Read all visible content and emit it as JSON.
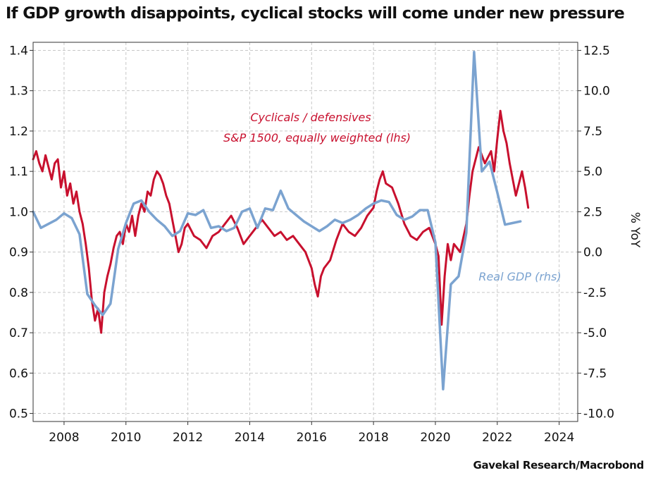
{
  "title": "If GDP growth disappoints, cyclical stocks will come under new pressure",
  "source": "Gavekal Research/Macrobond",
  "colors": {
    "cyclicals": "#c8102e",
    "gdp": "#7ba3d0",
    "grid": "#c8c8c8"
  },
  "chart_data": {
    "type": "line",
    "grid": true,
    "x_axis": {
      "min": 2007.0,
      "max": 2024.6,
      "ticks": [
        2008,
        2010,
        2012,
        2014,
        2016,
        2018,
        2020,
        2022,
        2024
      ]
    },
    "y_left": {
      "min": 0.48,
      "max": 1.42,
      "ticks": [
        0.5,
        0.6,
        0.7,
        0.8,
        0.9,
        1.0,
        1.1,
        1.2,
        1.3,
        1.4
      ],
      "tick_labels": [
        "0.5",
        "0.6",
        "0.7",
        "0.8",
        "0.9",
        "1.0",
        "1.1",
        "1.2",
        "1.3",
        "1.4"
      ]
    },
    "y_right": {
      "min": -10.5,
      "max": 13.0,
      "ticks": [
        -10.0,
        -7.5,
        -5.0,
        -2.5,
        0.0,
        2.5,
        5.0,
        7.5,
        10.0,
        12.5
      ],
      "tick_labels": [
        "-10.0",
        "-7.5",
        "-5.0",
        "-2.5",
        "0.0",
        "2.5",
        "5.0",
        "7.5",
        "10.0",
        "12.5"
      ],
      "label": "% YoY"
    },
    "series": [
      {
        "name": "Cyclicals / defensives S&P 1500, equally weighted (lhs)",
        "label_lines": [
          "Cyclicals / defensives",
          "S&P 1500, equally weighted (lhs)"
        ],
        "axis": "left",
        "x": [
          2007.0,
          2007.1,
          2007.2,
          2007.3,
          2007.4,
          2007.5,
          2007.6,
          2007.7,
          2007.8,
          2007.9,
          2008.0,
          2008.1,
          2008.2,
          2008.3,
          2008.4,
          2008.5,
          2008.6,
          2008.7,
          2008.8,
          2008.9,
          2009.0,
          2009.1,
          2009.2,
          2009.3,
          2009.4,
          2009.5,
          2009.6,
          2009.7,
          2009.8,
          2009.9,
          2010.0,
          2010.1,
          2010.2,
          2010.3,
          2010.4,
          2010.5,
          2010.6,
          2010.7,
          2010.8,
          2010.9,
          2011.0,
          2011.1,
          2011.2,
          2011.3,
          2011.4,
          2011.5,
          2011.6,
          2011.7,
          2011.8,
          2011.9,
          2012.0,
          2012.2,
          2012.4,
          2012.6,
          2012.8,
          2013.0,
          2013.2,
          2013.4,
          2013.6,
          2013.8,
          2014.0,
          2014.2,
          2014.4,
          2014.6,
          2014.8,
          2015.0,
          2015.2,
          2015.4,
          2015.6,
          2015.8,
          2016.0,
          2016.1,
          2016.2,
          2016.3,
          2016.4,
          2016.6,
          2016.8,
          2017.0,
          2017.2,
          2017.4,
          2017.6,
          2017.8,
          2018.0,
          2018.1,
          2018.2,
          2018.3,
          2018.4,
          2018.6,
          2018.8,
          2019.0,
          2019.2,
          2019.4,
          2019.6,
          2019.8,
          2020.0,
          2020.1,
          2020.2,
          2020.3,
          2020.4,
          2020.5,
          2020.6,
          2020.8,
          2021.0,
          2021.1,
          2021.2,
          2021.4,
          2021.6,
          2021.8,
          2021.9,
          2022.0,
          2022.1,
          2022.2,
          2022.3,
          2022.4,
          2022.5,
          2022.6,
          2022.7,
          2022.8,
          2022.9,
          2023.0
        ],
        "y": [
          1.13,
          1.15,
          1.12,
          1.1,
          1.14,
          1.11,
          1.08,
          1.12,
          1.13,
          1.06,
          1.1,
          1.04,
          1.07,
          1.02,
          1.05,
          1.0,
          0.97,
          0.92,
          0.86,
          0.78,
          0.73,
          0.76,
          0.7,
          0.8,
          0.84,
          0.87,
          0.91,
          0.94,
          0.95,
          0.92,
          0.97,
          0.95,
          0.99,
          0.94,
          0.99,
          1.02,
          1.0,
          1.05,
          1.04,
          1.08,
          1.1,
          1.09,
          1.07,
          1.04,
          1.02,
          0.98,
          0.94,
          0.9,
          0.92,
          0.96,
          0.97,
          0.94,
          0.93,
          0.91,
          0.94,
          0.95,
          0.97,
          0.99,
          0.96,
          0.92,
          0.94,
          0.96,
          0.98,
          0.96,
          0.94,
          0.95,
          0.93,
          0.94,
          0.92,
          0.9,
          0.86,
          0.82,
          0.79,
          0.84,
          0.86,
          0.88,
          0.93,
          0.97,
          0.95,
          0.94,
          0.96,
          0.99,
          1.01,
          1.05,
          1.08,
          1.1,
          1.07,
          1.06,
          1.02,
          0.97,
          0.94,
          0.93,
          0.95,
          0.96,
          0.92,
          0.89,
          0.72,
          0.84,
          0.92,
          0.88,
          0.92,
          0.9,
          0.97,
          1.04,
          1.1,
          1.16,
          1.12,
          1.15,
          1.1,
          1.18,
          1.25,
          1.2,
          1.17,
          1.12,
          1.08,
          1.04,
          1.07,
          1.1,
          1.06,
          1.01
        ]
      },
      {
        "name": "Real GDP (rhs)",
        "axis": "right",
        "x": [
          2007.0,
          2007.25,
          2007.75,
          2008.0,
          2008.25,
          2008.5,
          2008.75,
          2009.0,
          2009.25,
          2009.5,
          2009.75,
          2010.0,
          2010.25,
          2010.5,
          2010.75,
          2011.0,
          2011.25,
          2011.5,
          2011.75,
          2012.0,
          2012.25,
          2012.5,
          2012.75,
          2013.0,
          2013.25,
          2013.5,
          2013.75,
          2014.0,
          2014.25,
          2014.5,
          2014.75,
          2015.0,
          2015.25,
          2015.5,
          2015.75,
          2016.0,
          2016.25,
          2016.5,
          2016.75,
          2017.0,
          2017.25,
          2017.5,
          2017.75,
          2018.0,
          2018.25,
          2018.5,
          2018.75,
          2019.0,
          2019.25,
          2019.5,
          2019.75,
          2020.0,
          2020.25,
          2020.5,
          2020.75,
          2021.0,
          2021.25,
          2021.5,
          2021.75,
          2022.0,
          2022.25,
          2022.5,
          2022.75
        ],
        "y": [
          2.5,
          1.5,
          2.0,
          2.4,
          2.1,
          1.1,
          -2.6,
          -3.3,
          -3.9,
          -3.2,
          0.2,
          1.8,
          3.0,
          3.2,
          2.5,
          2.0,
          1.6,
          1.0,
          1.3,
          2.4,
          2.3,
          2.6,
          1.5,
          1.6,
          1.3,
          1.5,
          2.5,
          2.7,
          1.5,
          2.7,
          2.6,
          3.8,
          2.7,
          2.3,
          1.9,
          1.6,
          1.3,
          1.6,
          2.0,
          1.8,
          2.0,
          2.3,
          2.7,
          3.0,
          3.2,
          3.1,
          2.3,
          2.0,
          2.2,
          2.6,
          2.6,
          0.6,
          -8.5,
          -2.0,
          -1.5,
          1.2,
          12.4,
          5.0,
          5.6,
          3.7,
          1.7,
          1.8,
          1.9
        ]
      }
    ]
  },
  "annotations": {
    "cyclicals_label_color": "#c8102e",
    "gdp_label": "Real GDP (rhs)"
  }
}
